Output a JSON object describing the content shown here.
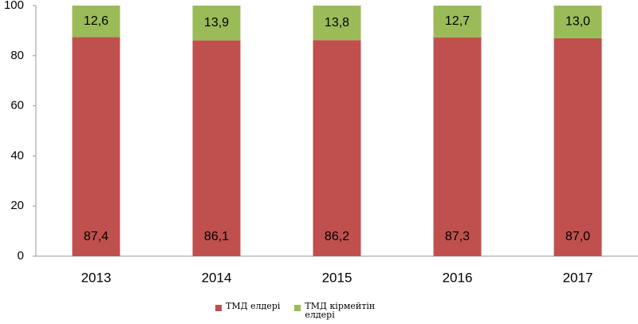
{
  "chart_data": {
    "type": "stacked_bar",
    "categories": [
      "2013",
      "2014",
      "2015",
      "2016",
      "2017"
    ],
    "series": [
      {
        "name": "ТМД елдері",
        "color": "#c0504d",
        "values": [
          87.4,
          86.1,
          86.2,
          87.3,
          87.0
        ],
        "value_labels": [
          "87,4",
          "86,1",
          "86,2",
          "87,3",
          "87,0"
        ]
      },
      {
        "name": "ТМД кірмейтін елдері",
        "color": "#9bbb59",
        "values": [
          12.6,
          13.9,
          13.8,
          12.7,
          13.0
        ],
        "value_labels": [
          "12,6",
          "13,9",
          "13,8",
          "12,7",
          "13,0"
        ]
      }
    ],
    "ylim": [
      0,
      100
    ],
    "yticks": [
      0,
      20,
      40,
      60,
      80,
      100
    ],
    "grid": false,
    "legend": "bottom"
  }
}
